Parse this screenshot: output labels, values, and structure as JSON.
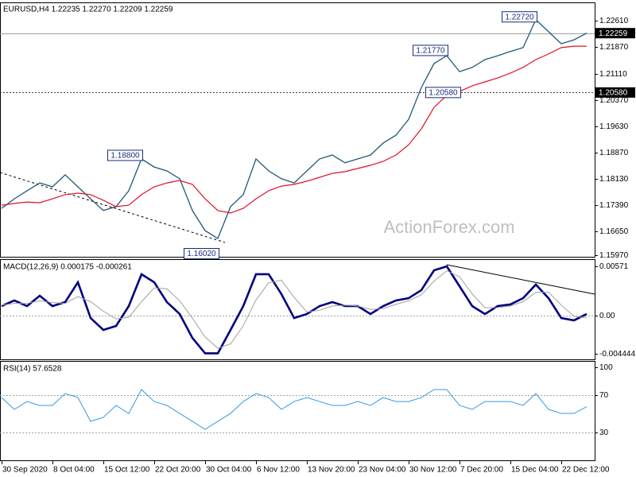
{
  "chart_data": [
    {
      "type": "line",
      "title": "EURUSD,H4  1.22235 1.22270 1.22209 1.22259",
      "ylim": [
        1.1593,
        1.2313
      ],
      "yticks": [
        {
          "value": 1.2261,
          "label": "1.22610"
        },
        {
          "value": 1.2187,
          "label": "1.21870"
        },
        {
          "value": 1.2111,
          "label": "1.21110"
        },
        {
          "value": 1.2037,
          "label": "1.20370"
        },
        {
          "value": 1.1963,
          "label": "1.19630"
        },
        {
          "value": 1.1887,
          "label": "1.18870"
        },
        {
          "value": 1.1813,
          "label": "1.18130"
        },
        {
          "value": 1.1739,
          "label": "1.17390"
        },
        {
          "value": 1.1665,
          "label": "1.16650"
        },
        {
          "value": 1.1597,
          "label": "1.15970"
        }
      ],
      "series": [
        {
          "color": "#1f5a78",
          "values": [
            1.173,
            1.1757,
            1.178,
            1.1802,
            1.1791,
            1.1825,
            1.1791,
            1.1757,
            1.1724,
            1.1735,
            1.178,
            1.187,
            1.1847,
            1.1836,
            1.1814,
            1.1724,
            1.1667,
            1.1645,
            1.1735,
            1.1769,
            1.187,
            1.1836,
            1.1814,
            1.1802,
            1.1836,
            1.187,
            1.1881,
            1.1859,
            1.187,
            1.1881,
            1.1915,
            1.1937,
            1.1982,
            1.2072,
            1.214,
            1.2162,
            1.2117,
            1.2129,
            1.2151,
            1.2162,
            1.2174,
            1.2185,
            1.2264,
            1.223,
            1.2196,
            1.2207,
            1.22259
          ]
        },
        {
          "color": "#e0102a",
          "values": [
            1.1739,
            1.1744,
            1.1748,
            1.1746,
            1.1757,
            1.1769,
            1.1773,
            1.1769,
            1.1753,
            1.1735,
            1.1739,
            1.1769,
            1.1791,
            1.1802,
            1.1809,
            1.1798,
            1.1757,
            1.1724,
            1.1717,
            1.173,
            1.1757,
            1.178,
            1.1793,
            1.1798,
            1.1807,
            1.1818,
            1.1829,
            1.1834,
            1.1843,
            1.1852,
            1.1863,
            1.1881,
            1.191,
            1.1955,
            1.2016,
            1.205,
            1.2061,
            1.2077,
            1.2088,
            1.2099,
            1.2113,
            1.2129,
            1.2151,
            1.2167,
            1.2185,
            1.2189,
            1.2189
          ]
        }
      ],
      "levels": [
        {
          "value": 1.22259,
          "line": "solid",
          "color": "#a0a0a0",
          "boxed": true
        },
        {
          "value": 1.2058,
          "label": "1.20580",
          "line": "dotted",
          "color": "#404040",
          "boxed": true
        }
      ],
      "pivots": {
        "values": [
          null,
          null,
          null,
          null,
          null,
          null,
          null,
          null,
          null,
          null,
          null,
          1.188,
          null,
          null,
          null,
          null,
          null,
          1.1602,
          null,
          null,
          null,
          null,
          null,
          null,
          null,
          null,
          null,
          null,
          null,
          null,
          null,
          null,
          null,
          null,
          null,
          1.2177,
          1.2058,
          null,
          null,
          null,
          null,
          null,
          1.2272,
          null,
          null,
          null,
          null
        ],
        "value_labels": [
          null,
          null,
          null,
          null,
          null,
          null,
          null,
          null,
          null,
          null,
          null,
          "1.18800",
          null,
          null,
          null,
          null,
          null,
          "1.16020",
          null,
          null,
          null,
          null,
          null,
          null,
          null,
          null,
          null,
          null,
          null,
          null,
          null,
          null,
          null,
          null,
          null,
          "1.21770",
          "1.20580",
          null,
          null,
          null,
          null,
          null,
          "1.22720",
          null,
          null,
          null,
          null
        ]
      },
      "watermark": "ActionForex.com"
    },
    {
      "type": "line",
      "title": "MACD(12,26,9) 0.000175 -0.000261",
      "ylim": [
        -0.0051,
        0.00645
      ],
      "yticks": [
        0.00571,
        {
          "value": 0,
          "label": "0.00"
        },
        -0.004444
      ],
      "levels": [
        {
          "value": 0,
          "line": "dotted",
          "color": "#a0a0a0"
        }
      ],
      "series": [
        {
          "color": "#00007f",
          "values": [
            0.00109,
            0.00174,
            0.00109,
            0.00229,
            0.00109,
            0.00155,
            0.00386,
            -0.0003,
            -0.00168,
            -0.00122,
            0.00109,
            0.00479,
            0.00386,
            0.00155,
            0.00017,
            -0.00261,
            -0.0044,
            -0.0044,
            -0.00168,
            0.00109,
            0.00479,
            0.00479,
            0.00248,
            -0.0003,
            0.00017,
            0.00109,
            0.00155,
            0.00109,
            0.00109,
            0.00017,
            0.00109,
            0.00174,
            0.00201,
            0.00294,
            0.00525,
            0.00571,
            0.0034,
            0.00109,
            0.00017,
            0.00109,
            0.00128,
            0.00201,
            0.00359,
            0.00201,
            -0.0003,
            -0.00057,
            0.000175
          ]
        },
        {
          "color": "#a0a0a0",
          "values": [
            0.0012,
            0.0014,
            0.0014,
            0.0017,
            0.0015,
            0.0014,
            0.0022,
            0.0016,
            0.0005,
            -0.0004,
            -0.0002,
            0.0016,
            0.0032,
            0.0031,
            0.0017,
            -0.0003,
            -0.0025,
            -0.0038,
            -0.0033,
            -0.0012,
            0.0018,
            0.0038,
            0.0041,
            0.0021,
            0.0004,
            0.0006,
            0.0011,
            0.0012,
            0.0011,
            0.0007,
            0.0008,
            0.0013,
            0.0017,
            0.0024,
            0.004,
            0.0052,
            0.0045,
            0.0025,
            0.0009,
            0.0009,
            0.0011,
            0.0016,
            0.0027,
            0.0027,
            0.0012,
            -0.0001,
            -0.000261
          ]
        }
      ]
    },
    {
      "type": "line",
      "title": "RSI(14) 57.6528",
      "ylim": [
        0,
        106
      ],
      "yticks": [
        100,
        70,
        30
      ],
      "levels": [
        {
          "value": 70,
          "line": "dotted",
          "color": "#a0a0a0"
        },
        {
          "value": 30,
          "line": "dotted",
          "color": "#a0a0a0"
        }
      ],
      "series": [
        {
          "color": "#3399e6",
          "values": [
            67.5,
            54.7,
            63.2,
            59,
            59,
            71.8,
            67.5,
            41.9,
            46.2,
            59,
            50.4,
            76.1,
            63.2,
            59,
            50.4,
            41.9,
            33.3,
            41.9,
            50.4,
            63.2,
            71.8,
            67.5,
            54.7,
            63.2,
            67.5,
            63.2,
            59,
            59,
            63.2,
            59,
            67.5,
            63.2,
            63.2,
            67.5,
            76.1,
            76.1,
            59,
            54.7,
            63.2,
            63.2,
            63.2,
            59,
            71.8,
            54.7,
            50.4,
            50.4,
            57.6528
          ]
        }
      ],
      "categories": [
        "30 Sep 2020",
        null,
        null,
        null,
        "8 Oct 04:00",
        null,
        null,
        null,
        "15 Oct 12:00",
        null,
        null,
        null,
        "22 Oct 20:00",
        null,
        null,
        null,
        "30 Oct 04:00",
        null,
        null,
        null,
        "6 Nov 12:00",
        null,
        null,
        null,
        "13 Nov 20:00",
        null,
        null,
        null,
        "23 Nov 04:00",
        null,
        null,
        null,
        "30 Nov 12:00",
        null,
        null,
        null,
        "7 Dec 20:00",
        null,
        null,
        null,
        "15 Dec 04:00",
        null,
        null,
        null,
        "22 Dec 12:00",
        null,
        null
      ]
    }
  ]
}
